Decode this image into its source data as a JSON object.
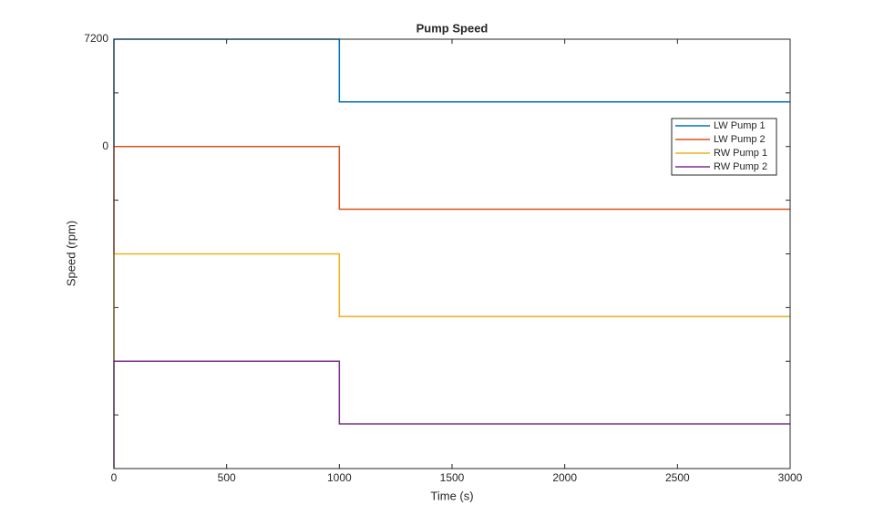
{
  "chart_data": {
    "type": "line",
    "title": "Pump Speed",
    "xlabel": "Time (s)",
    "ylabel": "Speed (rpm)",
    "x": [
      0,
      0,
      1000,
      1000,
      3000
    ],
    "series": [
      {
        "name": "LW Pump 1",
        "color": "#0072BD",
        "values": [
          0,
          7200,
          7200,
          3000,
          3000
        ]
      },
      {
        "name": "LW Pump 2",
        "color": "#D95319",
        "values": [
          -7200,
          0,
          0,
          -4200,
          -4200
        ]
      },
      {
        "name": "RW Pump 1",
        "color": "#EDB120",
        "values": [
          -14400,
          -7200,
          -7200,
          -11400,
          -11400
        ]
      },
      {
        "name": "RW Pump 2",
        "color": "#7E2F8E",
        "values": [
          -21600,
          -14400,
          -14400,
          -18600,
          -18600
        ]
      }
    ],
    "xlim": [
      0,
      3000
    ],
    "xticks": [
      0,
      500,
      1000,
      1500,
      2000,
      2500,
      3000
    ],
    "ylim": [
      -21600,
      7200
    ],
    "yticks": [
      7200,
      {
        "value": 3600,
        "label": null
      },
      0,
      {
        "value": -3600,
        "label": null
      },
      {
        "value": -7200,
        "label": null
      },
      {
        "value": -10800,
        "label": null
      },
      {
        "value": -14400,
        "label": null
      },
      {
        "value": -18000,
        "label": null
      },
      {
        "value": -21600,
        "label": null
      }
    ],
    "legend": "northeast"
  }
}
